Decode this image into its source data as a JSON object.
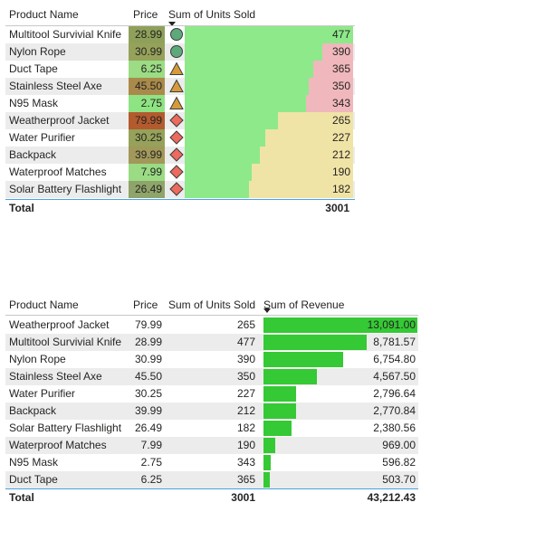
{
  "table1": {
    "headers": {
      "product": "Product Name",
      "price": "Price",
      "units": "Sum of Units Sold"
    },
    "rows": [
      {
        "product": "Multitool Survivial Knife",
        "price": "28.99",
        "units": "477",
        "units_value": 477,
        "price_color": "#8fa05a",
        "icon": "circle",
        "icon_color": "#5ea97c",
        "bar_bg": "#f0b8bc"
      },
      {
        "product": "Nylon Rope",
        "price": "30.99",
        "units": "390",
        "units_value": 390,
        "price_color": "#96a15a",
        "icon": "circle",
        "icon_color": "#5ea97c",
        "bar_bg": "#f0b8bc"
      },
      {
        "product": "Duct Tape",
        "price": "6.25",
        "units": "365",
        "units_value": 365,
        "price_color": "#9bdc84",
        "icon": "triangle",
        "icon_color": "#d79a3a",
        "bar_bg": "#f0b8bc"
      },
      {
        "product": "Stainless Steel Axe",
        "price": "45.50",
        "units": "350",
        "units_value": 350,
        "price_color": "#a98a4a",
        "icon": "triangle",
        "icon_color": "#d79a3a",
        "bar_bg": "#f0b8bc"
      },
      {
        "product": "N95 Mask",
        "price": "2.75",
        "units": "343",
        "units_value": 343,
        "price_color": "#8ee382",
        "icon": "triangle",
        "icon_color": "#d79a3a",
        "bar_bg": "#f0b8bc"
      },
      {
        "product": "Weatherproof Jacket",
        "price": "79.99",
        "units": "265",
        "units_value": 265,
        "price_color": "#b35a2e",
        "icon": "diamond",
        "icon_color": "#ec6a5e",
        "bar_bg": "#f0e3a6"
      },
      {
        "product": "Water Purifier",
        "price": "30.25",
        "units": "227",
        "units_value": 227,
        "price_color": "#96a15a",
        "icon": "diamond",
        "icon_color": "#ec6a5e",
        "bar_bg": "#f0e3a6"
      },
      {
        "product": "Backpack",
        "price": "39.99",
        "units": "212",
        "units_value": 212,
        "price_color": "#a1985a",
        "icon": "diamond",
        "icon_color": "#ec6a5e",
        "bar_bg": "#f0e3a6"
      },
      {
        "product": "Waterproof Matches",
        "price": "7.99",
        "units": "190",
        "units_value": 190,
        "price_color": "#9adb84",
        "icon": "diamond",
        "icon_color": "#ec6a5e",
        "bar_bg": "#f0e3a6"
      },
      {
        "product": "Solar Battery Flashlight",
        "price": "26.49",
        "units": "182",
        "units_value": 182,
        "price_color": "#8fa46a",
        "icon": "diamond",
        "icon_color": "#ec6a5e",
        "bar_bg": "#f0e3a6"
      }
    ],
    "total": {
      "label": "Total",
      "units": "3001"
    }
  },
  "table2": {
    "headers": {
      "product": "Product Name",
      "price": "Price",
      "units": "Sum of Units Sold",
      "revenue": "Sum of Revenue"
    },
    "rows": [
      {
        "product": "Weatherproof Jacket",
        "price": "79.99",
        "units": "265",
        "revenue": "13,091.00",
        "revenue_value": 13091.0
      },
      {
        "product": "Multitool Survivial Knife",
        "price": "28.99",
        "units": "477",
        "revenue": "8,781.57",
        "revenue_value": 8781.57
      },
      {
        "product": "Nylon Rope",
        "price": "30.99",
        "units": "390",
        "revenue": "6,754.80",
        "revenue_value": 6754.8
      },
      {
        "product": "Stainless Steel Axe",
        "price": "45.50",
        "units": "350",
        "revenue": "4,567.50",
        "revenue_value": 4567.5
      },
      {
        "product": "Water Purifier",
        "price": "30.25",
        "units": "227",
        "revenue": "2,796.64",
        "revenue_value": 2796.64
      },
      {
        "product": "Backpack",
        "price": "39.99",
        "units": "212",
        "revenue": "2,770.84",
        "revenue_value": 2770.84
      },
      {
        "product": "Solar Battery Flashlight",
        "price": "26.49",
        "units": "182",
        "revenue": "2,380.56",
        "revenue_value": 2380.56
      },
      {
        "product": "Waterproof Matches",
        "price": "7.99",
        "units": "190",
        "revenue": "969.00",
        "revenue_value": 969.0
      },
      {
        "product": "N95 Mask",
        "price": "2.75",
        "units": "343",
        "revenue": "596.82",
        "revenue_value": 596.82
      },
      {
        "product": "Duct Tape",
        "price": "6.25",
        "units": "365",
        "revenue": "503.70",
        "revenue_value": 503.7
      }
    ],
    "total": {
      "label": "Total",
      "units": "3001",
      "revenue": "43,212.43"
    }
  },
  "colors": {
    "units_bar": "#8ee98a",
    "revenue_bar": "#35c935",
    "row_alt": "#ececec",
    "grid_line": "#c8c8c8",
    "total_line": "#4aa3df"
  }
}
